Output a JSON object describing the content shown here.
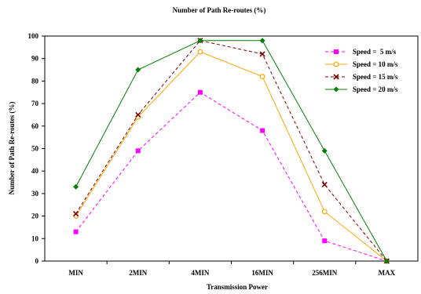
{
  "chart_data": {
    "type": "line",
    "title": "Number of Path Re-routes (%)",
    "xlabel": "Transmission Power",
    "ylabel": "Number of Path Re-routes (%)",
    "categories": [
      "MIN",
      "2MIN",
      "4MIN",
      "16MIN",
      "256MIN",
      "MAX"
    ],
    "ylim": [
      0,
      100
    ],
    "yticks": [
      "0",
      "10",
      "20",
      "30",
      "40",
      "50",
      "60",
      "70",
      "80",
      "90",
      "100"
    ],
    "grid": false,
    "legend_position": "top-right",
    "series": [
      {
        "name": "Speed =  5 m/s",
        "values": [
          13,
          49,
          75,
          58,
          9,
          0
        ],
        "color": "#ff00ff",
        "marker": "square",
        "dash": "dashed"
      },
      {
        "name": "Speed = 10 m/s",
        "values": [
          20,
          64,
          93,
          82,
          22,
          0
        ],
        "color": "#ffa500",
        "marker": "circle",
        "dash": "solid"
      },
      {
        "name": "Speed = 15 m/s",
        "values": [
          21,
          65,
          98,
          92,
          34,
          0
        ],
        "color": "#800000",
        "marker": "x",
        "dash": "dashed"
      },
      {
        "name": "Speed = 20 m/s",
        "values": [
          33,
          85,
          98,
          98,
          49,
          0
        ],
        "color": "#008000",
        "marker": "diamond",
        "dash": "solid"
      }
    ]
  }
}
